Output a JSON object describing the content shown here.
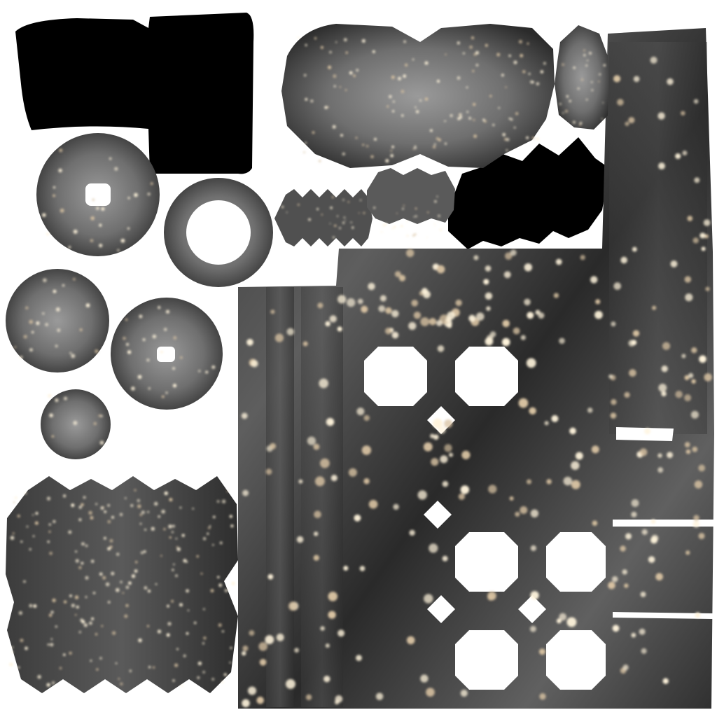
{
  "atlas": {
    "background": "#ffffff",
    "shell_dark": "#2b2b2b",
    "shell_mid": "#6f6f6f",
    "shell_light": "#9a9a9a",
    "shadow": "#000000",
    "glitter": "#fff4dc",
    "glitter_warm": "#d9c3a2",
    "hole": "#ffffff"
  }
}
